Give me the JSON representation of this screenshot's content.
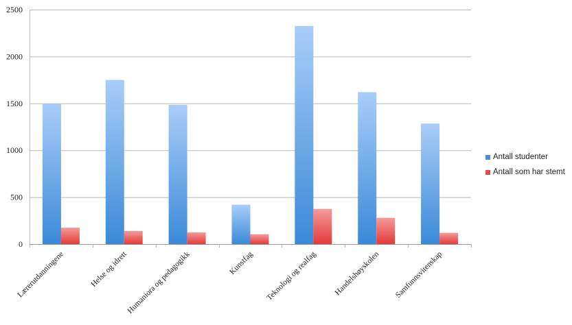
{
  "chart_data": {
    "type": "bar",
    "categories": [
      "Lærerutdanningene",
      "Helse og idrett",
      "Humaniora og pedagogikk",
      "Kunstfag",
      "Teknologi og realfag",
      "Handelshøyskolen",
      "Samfunnsvitenskap"
    ],
    "series": [
      {
        "name": "Antall studenter",
        "values": [
          1495,
          1750,
          1485,
          420,
          2325,
          1620,
          1285
        ],
        "color": "#4a90d9"
      },
      {
        "name": "Antall som har stemt",
        "values": [
          175,
          140,
          125,
          105,
          375,
          280,
          120
        ],
        "color": "#e84848"
      }
    ],
    "yticks": [
      "0",
      "500",
      "1000",
      "1500",
      "2000",
      "2500"
    ],
    "ylim": [
      0,
      2500
    ],
    "grid": true,
    "legend": "right"
  }
}
